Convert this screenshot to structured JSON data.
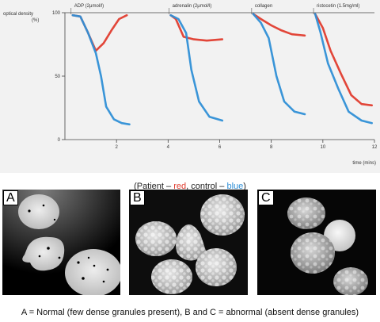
{
  "chart_data": {
    "type": "line",
    "ylabel": "optical density\n(%)",
    "xlabel": "time (mins)",
    "xlim": [
      0,
      12
    ],
    "ylim": [
      0,
      100
    ],
    "x_ticks": [
      "2",
      "4",
      "6",
      "8",
      "10",
      "12"
    ],
    "y_ticks": [
      "100",
      "50",
      "0"
    ],
    "panel_titles": [
      "ADP (2μmol/l)",
      "adrenalin (2μmol/l)",
      "collagen",
      "ristocetin (1.5mg/ml)"
    ],
    "colors": {
      "patient": "#e03c2e",
      "control": "#2f8fd6"
    },
    "series": [
      {
        "agonist": "ADP",
        "color": "patient",
        "x": [
          0.3,
          0.6,
          0.9,
          1.2,
          1.5,
          1.8,
          2.1,
          2.4
        ],
        "y": [
          98,
          97,
          84,
          70,
          76,
          86,
          95,
          98
        ]
      },
      {
        "agonist": "ADP",
        "color": "control",
        "x": [
          0.3,
          0.6,
          0.9,
          1.2,
          1.4,
          1.6,
          1.9,
          2.2,
          2.5
        ],
        "y": [
          98,
          97,
          84,
          68,
          50,
          26,
          16,
          13,
          12
        ]
      },
      {
        "agonist": "adrenalin",
        "color": "patient",
        "x": [
          4.1,
          4.3,
          4.6,
          5.0,
          5.5,
          6.1
        ],
        "y": [
          98,
          95,
          81,
          79,
          78,
          79
        ]
      },
      {
        "agonist": "adrenalin",
        "color": "control",
        "x": [
          4.1,
          4.4,
          4.7,
          4.9,
          5.2,
          5.6,
          6.1
        ],
        "y": [
          98,
          95,
          84,
          55,
          30,
          18,
          15
        ]
      },
      {
        "agonist": "collagen",
        "color": "patient",
        "x": [
          7.3,
          7.6,
          8.0,
          8.4,
          8.8,
          9.3
        ],
        "y": [
          99,
          95,
          90,
          86,
          83,
          82
        ]
      },
      {
        "agonist": "collagen",
        "color": "control",
        "x": [
          7.3,
          7.6,
          7.9,
          8.2,
          8.5,
          8.9,
          9.3
        ],
        "y": [
          99,
          92,
          80,
          50,
          30,
          22,
          20
        ]
      },
      {
        "agonist": "ristocetin",
        "color": "patient",
        "x": [
          9.7,
          10.0,
          10.3,
          10.7,
          11.1,
          11.5,
          11.9
        ],
        "y": [
          99,
          88,
          70,
          52,
          35,
          28,
          27
        ]
      },
      {
        "agonist": "ristocetin",
        "color": "control",
        "x": [
          9.7,
          9.9,
          10.2,
          10.6,
          11.0,
          11.5,
          11.9
        ],
        "y": [
          99,
          85,
          60,
          40,
          22,
          15,
          13
        ]
      }
    ]
  },
  "legend": {
    "open": "(Patient – ",
    "patient": "red",
    "mid": ", control – ",
    "control": "blue",
    "close": ")"
  },
  "panels": {
    "a": "A",
    "b": "B",
    "c": "C"
  },
  "caption": "A = Normal (few dense granules present), B and C = abnormal (absent dense granules)"
}
